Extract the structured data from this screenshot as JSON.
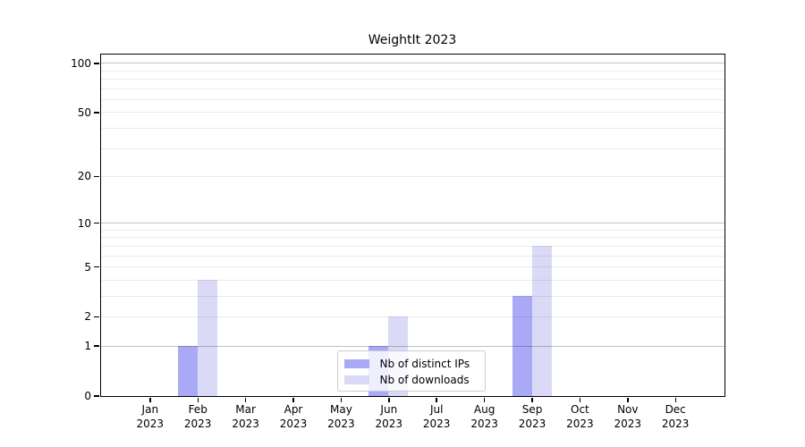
{
  "chart_data": {
    "type": "bar",
    "title": "WeightIt 2023",
    "categories": [
      "Jan 2023",
      "Feb 2023",
      "Mar 2023",
      "Apr 2023",
      "May 2023",
      "Jun 2023",
      "Jul 2023",
      "Aug 2023",
      "Sep 2023",
      "Oct 2023",
      "Nov 2023",
      "Dec 2023"
    ],
    "series": [
      {
        "name": "Nb of distinct IPs",
        "color": "#a9a9f5",
        "values": [
          0,
          1,
          0,
          0,
          0,
          1,
          0,
          0,
          3,
          0,
          0,
          0
        ]
      },
      {
        "name": "Nb of downloads",
        "color": "#dadaf7",
        "values": [
          0,
          4,
          0,
          0,
          0,
          2,
          0,
          0,
          7,
          0,
          0,
          0
        ]
      }
    ],
    "yscale": "log1p",
    "ylim": [
      0,
      113
    ],
    "yticks": [
      0,
      1,
      2,
      5,
      10,
      20,
      50,
      100
    ],
    "gridlines_major": [
      1,
      10,
      100
    ],
    "gridlines_minor": [
      2,
      3,
      4,
      5,
      6,
      7,
      8,
      9,
      20,
      30,
      40,
      50,
      60,
      70,
      80,
      90
    ],
    "grid": true,
    "legend_position": "lower-center-inside"
  }
}
